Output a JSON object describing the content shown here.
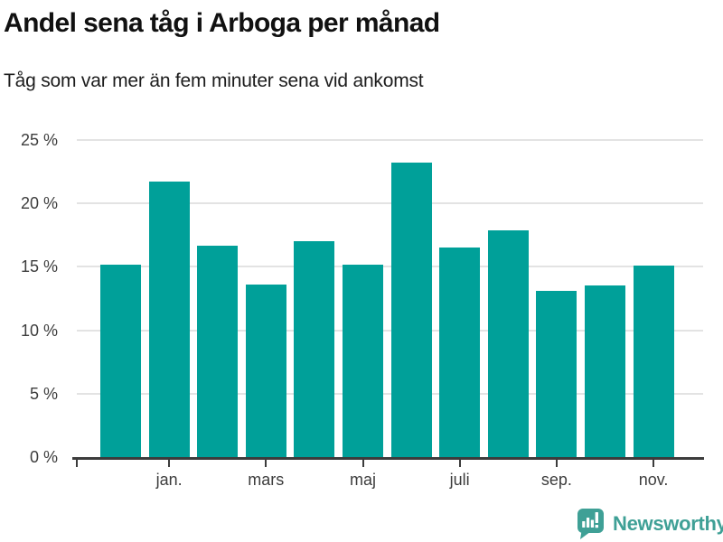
{
  "header": {
    "title": "Andel sena tåg i Arboga per månad",
    "subtitle": "Tåg som var mer än fem minuter sena vid ankomst"
  },
  "chart_data": {
    "type": "bar",
    "title": "Andel sena tåg i Arboga per månad",
    "subtitle": "Tåg som var mer än fem minuter sena vid ankomst",
    "unit": "%",
    "values": [
      15.2,
      21.7,
      16.7,
      13.6,
      17.0,
      15.2,
      23.2,
      16.5,
      17.9,
      13.1,
      13.5,
      15.1
    ],
    "bar_count": 12,
    "x_tick_labels": [
      "jan.",
      "mars",
      "maj",
      "juli",
      "sep.",
      "nov."
    ],
    "x_tick_bar_indices": [
      1,
      3,
      5,
      7,
      9,
      11
    ],
    "y_tick_labels": [
      "0 %",
      "5 %",
      "10 %",
      "15 %",
      "20 %",
      "25 %"
    ],
    "y_tick_values": [
      0,
      5,
      10,
      15,
      20,
      25
    ],
    "ylim": [
      0,
      25
    ],
    "grid": "horizontal",
    "legend": "none",
    "bar_color": "#00a099"
  },
  "colors": {
    "bar": "#00a099",
    "gridline": "#e3e3e3",
    "axis_line": "#3c3c3c",
    "tick_text": "#3d3d3d",
    "title_text": "#111111",
    "brand": "#3fa096"
  },
  "footer": {
    "brand_name": "Newsworthy"
  }
}
